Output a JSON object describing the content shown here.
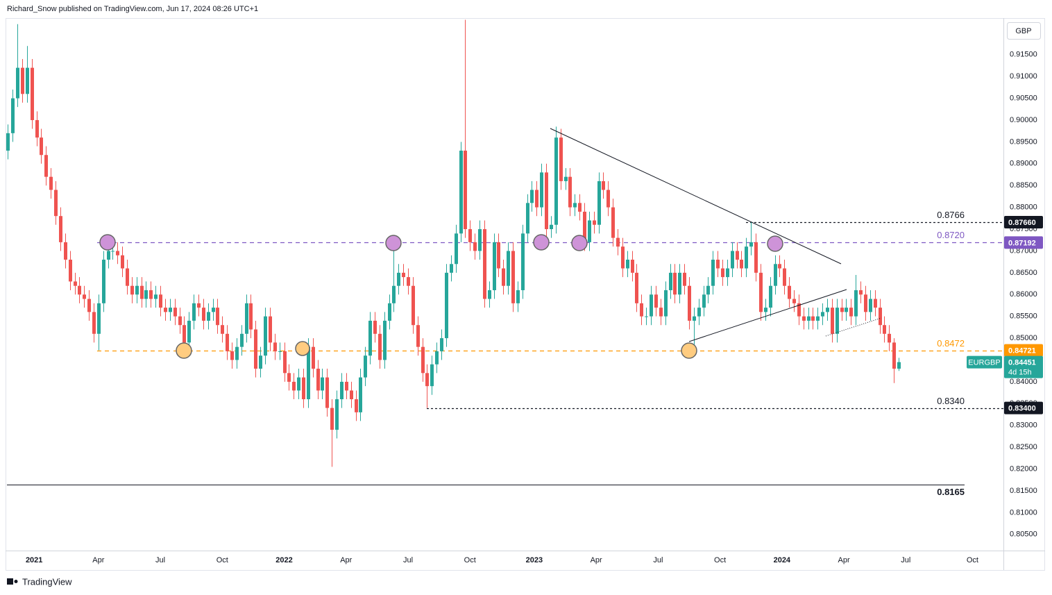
{
  "chart_data": {
    "type": "candlestick",
    "header": "Richard_Snow published on TradingView.com, Jun 17, 2024 08:26 UTC+1",
    "currency": "GBP",
    "footer": "TradingView",
    "up_color": "#26a69a",
    "down_color": "#ef5350",
    "xlim": [
      -0.5,
      209
    ],
    "ylim": [
      0.8013,
      0.9234
    ],
    "xticks": [
      {
        "value": 5.5,
        "label": "2021"
      },
      {
        "value": 19,
        "label": "Apr"
      },
      {
        "value": 32,
        "label": "Jul"
      },
      {
        "value": 45,
        "label": "Oct"
      },
      {
        "value": 58,
        "label": "2022"
      },
      {
        "value": 71,
        "label": "Apr"
      },
      {
        "value": 84,
        "label": "Jul"
      },
      {
        "value": 97,
        "label": "Oct"
      },
      {
        "value": 110.5,
        "label": "2023"
      },
      {
        "value": 123.5,
        "label": "Apr"
      },
      {
        "value": 136.5,
        "label": "Jul"
      },
      {
        "value": 149.5,
        "label": "Oct"
      },
      {
        "value": 162.5,
        "label": "2024"
      },
      {
        "value": 175.5,
        "label": "Apr"
      },
      {
        "value": 188.5,
        "label": "Jul"
      },
      {
        "value": 202.5,
        "label": "Oct"
      }
    ],
    "yticks": [
      {
        "value": 0.805,
        "label": "0.80500"
      },
      {
        "value": 0.81,
        "label": "0.81000"
      },
      {
        "value": 0.815,
        "label": "0.81500"
      },
      {
        "value": 0.82,
        "label": "0.82000"
      },
      {
        "value": 0.825,
        "label": "0.82500"
      },
      {
        "value": 0.83,
        "label": "0.83000"
      },
      {
        "value": 0.835,
        "label": "0.83500"
      },
      {
        "value": 0.84,
        "label": "0.84000"
      },
      {
        "value": 0.845,
        "label": "0.84500"
      },
      {
        "value": 0.85,
        "label": "0.85000"
      },
      {
        "value": 0.855,
        "label": "0.85500"
      },
      {
        "value": 0.86,
        "label": "0.86000"
      },
      {
        "value": 0.865,
        "label": "0.86500"
      },
      {
        "value": 0.87,
        "label": "0.87000"
      },
      {
        "value": 0.875,
        "label": "0.87500"
      },
      {
        "value": 0.88,
        "label": "0.88000"
      },
      {
        "value": 0.885,
        "label": "0.88500"
      },
      {
        "value": 0.89,
        "label": "0.89000"
      },
      {
        "value": 0.895,
        "label": "0.89500"
      },
      {
        "value": 0.9,
        "label": "0.90000"
      },
      {
        "value": 0.905,
        "label": "0.90500"
      },
      {
        "value": 0.91,
        "label": "0.91000"
      },
      {
        "value": 0.915,
        "label": "0.91500"
      }
    ],
    "levels": [
      {
        "value": 0.8766,
        "label": "0.8766",
        "color": "#131722",
        "style": "dashed"
      },
      {
        "value": 0.872,
        "label": "0.8720",
        "color": "#7e57c2",
        "style": "dashed"
      },
      {
        "value": 0.8472,
        "label": "0.8472",
        "color": "#ff9800",
        "style": "dashed"
      },
      {
        "value": 0.834,
        "label": "0.8340",
        "color": "#131722",
        "style": "dashed"
      },
      {
        "value": 0.8165,
        "label": "0.8165",
        "color": "#131722",
        "style": "solid"
      }
    ],
    "price_tags": [
      {
        "value": 0.8766,
        "label": "0.87660",
        "color": "#131722"
      },
      {
        "value": 0.87192,
        "label": "0.87192",
        "color": "#7e57c2"
      },
      {
        "value": 0.84721,
        "label": "0.84721",
        "color": "#ff9800"
      },
      {
        "value": 0.834,
        "label": "0.83400",
        "color": "#131722"
      }
    ],
    "last_price": {
      "symbol": "EURGBP",
      "value": 0.84451,
      "label": "0.84451",
      "countdown": "4d 15h",
      "color": "#26a69a"
    },
    "candles": [
      [
        0.893,
        0.899,
        0.891,
        0.897
      ],
      [
        0.897,
        0.907,
        0.895,
        0.905
      ],
      [
        0.905,
        0.922,
        0.903,
        0.912
      ],
      [
        0.912,
        0.914,
        0.904,
        0.906
      ],
      [
        0.906,
        0.917,
        0.904,
        0.912
      ],
      [
        0.912,
        0.914,
        0.898,
        0.9
      ],
      [
        0.9,
        0.902,
        0.894,
        0.896
      ],
      [
        0.896,
        0.898,
        0.89,
        0.892
      ],
      [
        0.892,
        0.894,
        0.885,
        0.887
      ],
      [
        0.887,
        0.889,
        0.882,
        0.884
      ],
      [
        0.884,
        0.886,
        0.876,
        0.878
      ],
      [
        0.878,
        0.88,
        0.87,
        0.872
      ],
      [
        0.872,
        0.874,
        0.866,
        0.868
      ],
      [
        0.868,
        0.87,
        0.861,
        0.863
      ],
      [
        0.863,
        0.865,
        0.86,
        0.862
      ],
      [
        0.862,
        0.864,
        0.858,
        0.86
      ],
      [
        0.86,
        0.862,
        0.857,
        0.859
      ],
      [
        0.859,
        0.861,
        0.854,
        0.856
      ],
      [
        0.856,
        0.858,
        0.849,
        0.851
      ],
      [
        0.851,
        0.86,
        0.8472,
        0.858
      ],
      [
        0.858,
        0.87,
        0.856,
        0.868
      ],
      [
        0.868,
        0.872,
        0.866,
        0.87
      ],
      [
        0.87,
        0.872,
        0.868,
        0.87
      ],
      [
        0.87,
        0.872,
        0.867,
        0.869
      ],
      [
        0.869,
        0.871,
        0.864,
        0.866
      ],
      [
        0.866,
        0.868,
        0.86,
        0.862
      ],
      [
        0.862,
        0.864,
        0.858,
        0.86
      ],
      [
        0.86,
        0.864,
        0.858,
        0.862
      ],
      [
        0.862,
        0.864,
        0.857,
        0.859
      ],
      [
        0.859,
        0.863,
        0.857,
        0.861
      ],
      [
        0.861,
        0.863,
        0.857,
        0.859
      ],
      [
        0.859,
        0.862,
        0.857,
        0.86
      ],
      [
        0.86,
        0.862,
        0.855,
        0.857
      ],
      [
        0.857,
        0.859,
        0.854,
        0.856
      ],
      [
        0.856,
        0.859,
        0.854,
        0.857
      ],
      [
        0.857,
        0.859,
        0.853,
        0.855
      ],
      [
        0.855,
        0.857,
        0.851,
        0.853
      ],
      [
        0.853,
        0.855,
        0.8472,
        0.849
      ],
      [
        0.849,
        0.856,
        0.847,
        0.854
      ],
      [
        0.854,
        0.86,
        0.852,
        0.858
      ],
      [
        0.858,
        0.86,
        0.855,
        0.857
      ],
      [
        0.857,
        0.859,
        0.852,
        0.854
      ],
      [
        0.854,
        0.858,
        0.852,
        0.856
      ],
      [
        0.856,
        0.859,
        0.854,
        0.857
      ],
      [
        0.857,
        0.859,
        0.851,
        0.853
      ],
      [
        0.853,
        0.855,
        0.849,
        0.851
      ],
      [
        0.851,
        0.853,
        0.845,
        0.847
      ],
      [
        0.847,
        0.849,
        0.843,
        0.845
      ],
      [
        0.845,
        0.85,
        0.843,
        0.848
      ],
      [
        0.848,
        0.853,
        0.846,
        0.851
      ],
      [
        0.851,
        0.86,
        0.849,
        0.858
      ],
      [
        0.858,
        0.86,
        0.85,
        0.852
      ],
      [
        0.852,
        0.854,
        0.841,
        0.843
      ],
      [
        0.843,
        0.848,
        0.841,
        0.846
      ],
      [
        0.846,
        0.857,
        0.844,
        0.855
      ],
      [
        0.855,
        0.857,
        0.847,
        0.849
      ],
      [
        0.849,
        0.851,
        0.845,
        0.847
      ],
      [
        0.847,
        0.849,
        0.845,
        0.847
      ],
      [
        0.847,
        0.849,
        0.84,
        0.842
      ],
      [
        0.842,
        0.844,
        0.838,
        0.84
      ],
      [
        0.84,
        0.842,
        0.836,
        0.838
      ],
      [
        0.838,
        0.843,
        0.836,
        0.841
      ],
      [
        0.841,
        0.843,
        0.834,
        0.836
      ],
      [
        0.836,
        0.85,
        0.834,
        0.848
      ],
      [
        0.848,
        0.85,
        0.841,
        0.843
      ],
      [
        0.843,
        0.845,
        0.836,
        0.838
      ],
      [
        0.838,
        0.843,
        0.836,
        0.841
      ],
      [
        0.841,
        0.843,
        0.832,
        0.834
      ],
      [
        0.834,
        0.836,
        0.8205,
        0.829
      ],
      [
        0.829,
        0.838,
        0.827,
        0.836
      ],
      [
        0.836,
        0.842,
        0.834,
        0.84
      ],
      [
        0.84,
        0.842,
        0.836,
        0.838
      ],
      [
        0.838,
        0.84,
        0.834,
        0.836
      ],
      [
        0.836,
        0.838,
        0.831,
        0.833
      ],
      [
        0.833,
        0.843,
        0.831,
        0.841
      ],
      [
        0.841,
        0.848,
        0.839,
        0.846
      ],
      [
        0.846,
        0.856,
        0.844,
        0.854
      ],
      [
        0.854,
        0.856,
        0.849,
        0.851
      ],
      [
        0.851,
        0.853,
        0.843,
        0.845
      ],
      [
        0.845,
        0.856,
        0.843,
        0.854
      ],
      [
        0.854,
        0.86,
        0.852,
        0.858
      ],
      [
        0.858,
        0.8715,
        0.856,
        0.862
      ],
      [
        0.862,
        0.867,
        0.86,
        0.865
      ],
      [
        0.865,
        0.867,
        0.862,
        0.864
      ],
      [
        0.864,
        0.866,
        0.86,
        0.862
      ],
      [
        0.862,
        0.864,
        0.851,
        0.853
      ],
      [
        0.853,
        0.855,
        0.846,
        0.848
      ],
      [
        0.848,
        0.85,
        0.84,
        0.842
      ],
      [
        0.842,
        0.844,
        0.834,
        0.839
      ],
      [
        0.839,
        0.846,
        0.837,
        0.844
      ],
      [
        0.844,
        0.849,
        0.842,
        0.847
      ],
      [
        0.847,
        0.852,
        0.845,
        0.85
      ],
      [
        0.85,
        0.867,
        0.848,
        0.865
      ],
      [
        0.865,
        0.869,
        0.863,
        0.867
      ],
      [
        0.867,
        0.876,
        0.865,
        0.874
      ],
      [
        0.874,
        0.895,
        0.872,
        0.893
      ],
      [
        0.893,
        0.923,
        0.873,
        0.875
      ],
      [
        0.875,
        0.877,
        0.87,
        0.872
      ],
      [
        0.872,
        0.874,
        0.868,
        0.87
      ],
      [
        0.87,
        0.877,
        0.868,
        0.875
      ],
      [
        0.875,
        0.877,
        0.857,
        0.859
      ],
      [
        0.859,
        0.863,
        0.857,
        0.861
      ],
      [
        0.861,
        0.874,
        0.859,
        0.872
      ],
      [
        0.872,
        0.874,
        0.864,
        0.866
      ],
      [
        0.866,
        0.868,
        0.86,
        0.862
      ],
      [
        0.862,
        0.872,
        0.86,
        0.87
      ],
      [
        0.87,
        0.872,
        0.856,
        0.858
      ],
      [
        0.858,
        0.863,
        0.856,
        0.861
      ],
      [
        0.861,
        0.876,
        0.859,
        0.874
      ],
      [
        0.874,
        0.883,
        0.872,
        0.881
      ],
      [
        0.881,
        0.886,
        0.879,
        0.884
      ],
      [
        0.884,
        0.886,
        0.878,
        0.88
      ],
      [
        0.88,
        0.89,
        0.878,
        0.888
      ],
      [
        0.888,
        0.89,
        0.873,
        0.875
      ],
      [
        0.875,
        0.878,
        0.873,
        0.876
      ],
      [
        0.876,
        0.8985,
        0.874,
        0.896
      ],
      [
        0.896,
        0.898,
        0.884,
        0.886
      ],
      [
        0.886,
        0.889,
        0.884,
        0.887
      ],
      [
        0.887,
        0.889,
        0.878,
        0.88
      ],
      [
        0.88,
        0.883,
        0.878,
        0.881
      ],
      [
        0.881,
        0.883,
        0.877,
        0.879
      ],
      [
        0.879,
        0.881,
        0.87,
        0.872
      ],
      [
        0.872,
        0.879,
        0.87,
        0.877
      ],
      [
        0.877,
        0.879,
        0.874,
        0.876
      ],
      [
        0.876,
        0.888,
        0.874,
        0.886
      ],
      [
        0.886,
        0.888,
        0.882,
        0.884
      ],
      [
        0.884,
        0.886,
        0.878,
        0.88
      ],
      [
        0.88,
        0.882,
        0.871,
        0.873
      ],
      [
        0.873,
        0.875,
        0.869,
        0.871
      ],
      [
        0.871,
        0.873,
        0.864,
        0.866
      ],
      [
        0.866,
        0.87,
        0.864,
        0.868
      ],
      [
        0.868,
        0.87,
        0.863,
        0.865
      ],
      [
        0.865,
        0.867,
        0.856,
        0.858
      ],
      [
        0.858,
        0.86,
        0.853,
        0.855
      ],
      [
        0.855,
        0.857,
        0.853,
        0.855
      ],
      [
        0.855,
        0.862,
        0.853,
        0.86
      ],
      [
        0.86,
        0.862,
        0.855,
        0.857
      ],
      [
        0.857,
        0.859,
        0.853,
        0.855
      ],
      [
        0.855,
        0.863,
        0.853,
        0.861
      ],
      [
        0.861,
        0.867,
        0.859,
        0.865
      ],
      [
        0.865,
        0.867,
        0.858,
        0.86
      ],
      [
        0.86,
        0.867,
        0.858,
        0.865
      ],
      [
        0.865,
        0.867,
        0.86,
        0.862
      ],
      [
        0.862,
        0.864,
        0.852,
        0.854
      ],
      [
        0.854,
        0.857,
        0.8485,
        0.855
      ],
      [
        0.855,
        0.859,
        0.853,
        0.857
      ],
      [
        0.857,
        0.862,
        0.855,
        0.86
      ],
      [
        0.86,
        0.864,
        0.858,
        0.862
      ],
      [
        0.862,
        0.87,
        0.86,
        0.868
      ],
      [
        0.868,
        0.87,
        0.864,
        0.866
      ],
      [
        0.866,
        0.868,
        0.862,
        0.864
      ],
      [
        0.864,
        0.868,
        0.862,
        0.866
      ],
      [
        0.866,
        0.872,
        0.864,
        0.87
      ],
      [
        0.87,
        0.872,
        0.866,
        0.868
      ],
      [
        0.868,
        0.87,
        0.864,
        0.866
      ],
      [
        0.866,
        0.873,
        0.864,
        0.871
      ],
      [
        0.871,
        0.8766,
        0.869,
        0.872
      ],
      [
        0.872,
        0.874,
        0.863,
        0.865
      ],
      [
        0.865,
        0.867,
        0.854,
        0.856
      ],
      [
        0.856,
        0.859,
        0.854,
        0.857
      ],
      [
        0.857,
        0.864,
        0.855,
        0.862
      ],
      [
        0.862,
        0.869,
        0.86,
        0.867
      ],
      [
        0.867,
        0.869,
        0.864,
        0.866
      ],
      [
        0.866,
        0.868,
        0.86,
        0.862
      ],
      [
        0.862,
        0.864,
        0.857,
        0.859
      ],
      [
        0.859,
        0.861,
        0.856,
        0.858
      ],
      [
        0.858,
        0.86,
        0.853,
        0.855
      ],
      [
        0.855,
        0.857,
        0.852,
        0.854
      ],
      [
        0.854,
        0.857,
        0.852,
        0.855
      ],
      [
        0.855,
        0.857,
        0.852,
        0.854
      ],
      [
        0.854,
        0.857,
        0.852,
        0.855
      ],
      [
        0.855,
        0.858,
        0.853,
        0.856
      ],
      [
        0.856,
        0.859,
        0.854,
        0.857
      ],
      [
        0.857,
        0.859,
        0.849,
        0.851
      ],
      [
        0.851,
        0.859,
        0.849,
        0.857
      ],
      [
        0.857,
        0.859,
        0.854,
        0.856
      ],
      [
        0.856,
        0.859,
        0.854,
        0.857
      ],
      [
        0.857,
        0.859,
        0.853,
        0.855
      ],
      [
        0.855,
        0.8645,
        0.853,
        0.861
      ],
      [
        0.861,
        0.863,
        0.858,
        0.86
      ],
      [
        0.86,
        0.862,
        0.854,
        0.856
      ],
      [
        0.856,
        0.861,
        0.854,
        0.859
      ],
      [
        0.859,
        0.861,
        0.855,
        0.857
      ],
      [
        0.857,
        0.859,
        0.851,
        0.853
      ],
      [
        0.853,
        0.855,
        0.849,
        0.851
      ],
      [
        0.851,
        0.853,
        0.847,
        0.849
      ],
      [
        0.849,
        0.85,
        0.8397,
        0.843
      ],
      [
        0.843,
        0.8455,
        0.8425,
        0.84451
      ]
    ]
  }
}
